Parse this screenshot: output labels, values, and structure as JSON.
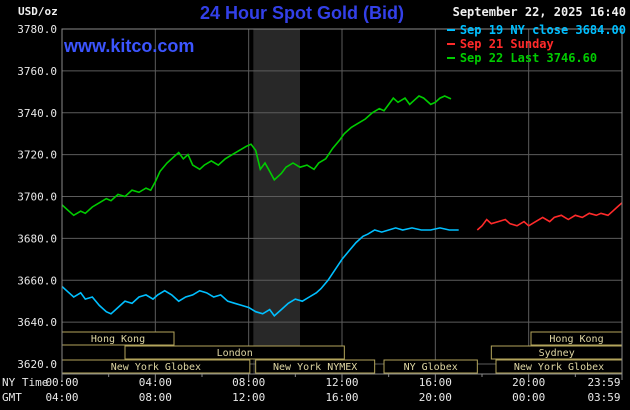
{
  "header": {
    "unit": "USD/oz",
    "title": "24 Hour Spot Gold (Bid)",
    "datetime": "September 22, 2025 16:40",
    "watermark": "www.kitco.com"
  },
  "legend": {
    "items": [
      {
        "label": "Sep 19 NY close 3684.00",
        "color": "#00bfff"
      },
      {
        "label": "Sep 21 Sunday",
        "color": "#ff2a2a"
      },
      {
        "label": "Sep 22 Last 3746.60",
        "color": "#00cc00"
      }
    ]
  },
  "axes": {
    "ny_label": "NY Time",
    "gmt_label": "GMT"
  },
  "chart_data": {
    "type": "line",
    "title": "24 Hour Spot Gold (Bid)",
    "xlabel": "NY Time / GMT",
    "ylabel": "USD/oz",
    "ylim": [
      3620,
      3780
    ],
    "ytick_step": 20,
    "xlim_hours": [
      0,
      24
    ],
    "grid": true,
    "legend_position": "top-right",
    "colors": {
      "band": "#282828",
      "grid": "#5c5c5c",
      "border": "#8a8a8a",
      "text": "#e8e8e8",
      "session_border": "#b3a55c",
      "session_text": "#ded6a3"
    },
    "xticks": [
      {
        "hour": 0,
        "ny": "00:00",
        "gmt": "04:00"
      },
      {
        "hour": 4,
        "ny": "04:00",
        "gmt": "08:00"
      },
      {
        "hour": 8,
        "ny": "08:00",
        "gmt": "12:00"
      },
      {
        "hour": 12,
        "ny": "12:00",
        "gmt": "16:00"
      },
      {
        "hour": 16,
        "ny": "16:00",
        "gmt": "20:00"
      },
      {
        "hour": 20,
        "ny": "20:00",
        "gmt": "00:00"
      },
      {
        "hour": 24,
        "ny": "23:59",
        "gmt": "03:59"
      }
    ],
    "highlight_band_hours": [
      8.2,
      10.2
    ],
    "sessions": [
      {
        "row": 0,
        "label": "Hong Kong",
        "start": 0,
        "end": 4.8
      },
      {
        "row": 0,
        "label": "Hong Kong",
        "start": 20.1,
        "end": 24
      },
      {
        "row": 1,
        "label": "London",
        "start": 2.7,
        "end": 12.1
      },
      {
        "row": 1,
        "label": "Sydney",
        "start": 18.4,
        "end": 24
      },
      {
        "row": 2,
        "label": "New York Globex",
        "start": 0,
        "end": 8.05
      },
      {
        "row": 2,
        "label": "New York NYMEX",
        "start": 8.3,
        "end": 13.4
      },
      {
        "row": 2,
        "label": "NY Globex",
        "start": 13.8,
        "end": 17.8
      },
      {
        "row": 2,
        "label": "New York Globex",
        "start": 18.6,
        "end": 24
      }
    ],
    "series": [
      {
        "id": "sep19",
        "name": "Sep 19 NY close 3684.00",
        "color": "#00bfff",
        "points": [
          [
            0,
            3657
          ],
          [
            0.3,
            3654
          ],
          [
            0.5,
            3652
          ],
          [
            0.8,
            3654
          ],
          [
            1,
            3651
          ],
          [
            1.3,
            3652
          ],
          [
            1.6,
            3648
          ],
          [
            1.9,
            3645
          ],
          [
            2.1,
            3644
          ],
          [
            2.4,
            3647
          ],
          [
            2.7,
            3650
          ],
          [
            3,
            3649
          ],
          [
            3.3,
            3652
          ],
          [
            3.6,
            3653
          ],
          [
            3.9,
            3651
          ],
          [
            4.1,
            3653
          ],
          [
            4.4,
            3655
          ],
          [
            4.7,
            3653
          ],
          [
            5,
            3650
          ],
          [
            5.3,
            3652
          ],
          [
            5.6,
            3653
          ],
          [
            5.9,
            3655
          ],
          [
            6.2,
            3654
          ],
          [
            6.5,
            3652
          ],
          [
            6.8,
            3653
          ],
          [
            7.1,
            3650
          ],
          [
            7.4,
            3649
          ],
          [
            7.7,
            3648
          ],
          [
            8,
            3647
          ],
          [
            8.3,
            3645
          ],
          [
            8.6,
            3644
          ],
          [
            8.9,
            3646
          ],
          [
            9.1,
            3643
          ],
          [
            9.4,
            3646
          ],
          [
            9.7,
            3649
          ],
          [
            10,
            3651
          ],
          [
            10.3,
            3650
          ],
          [
            10.6,
            3652
          ],
          [
            10.9,
            3654
          ],
          [
            11.1,
            3656
          ],
          [
            11.4,
            3660
          ],
          [
            11.7,
            3665
          ],
          [
            12,
            3670
          ],
          [
            12.3,
            3674
          ],
          [
            12.6,
            3678
          ],
          [
            12.9,
            3681
          ],
          [
            13.1,
            3682
          ],
          [
            13.4,
            3684
          ],
          [
            13.7,
            3683
          ],
          [
            14,
            3684
          ],
          [
            14.3,
            3685
          ],
          [
            14.6,
            3684
          ],
          [
            15,
            3685
          ],
          [
            15.4,
            3684
          ],
          [
            15.8,
            3684
          ],
          [
            16.2,
            3685
          ],
          [
            16.6,
            3684
          ],
          [
            17,
            3684
          ]
        ]
      },
      {
        "id": "sep21",
        "name": "Sep 21 Sunday",
        "color": "#ff2a2a",
        "points": [
          [
            17.8,
            3684
          ],
          [
            18,
            3686
          ],
          [
            18.2,
            3689
          ],
          [
            18.4,
            3687
          ],
          [
            18.7,
            3688
          ],
          [
            19,
            3689
          ],
          [
            19.2,
            3687
          ],
          [
            19.5,
            3686
          ],
          [
            19.8,
            3688
          ],
          [
            20,
            3686
          ],
          [
            20.3,
            3688
          ],
          [
            20.6,
            3690
          ],
          [
            20.9,
            3688
          ],
          [
            21.1,
            3690
          ],
          [
            21.4,
            3691
          ],
          [
            21.7,
            3689
          ],
          [
            22,
            3691
          ],
          [
            22.3,
            3690
          ],
          [
            22.6,
            3692
          ],
          [
            22.9,
            3691
          ],
          [
            23.1,
            3692
          ],
          [
            23.4,
            3691
          ],
          [
            23.6,
            3693
          ],
          [
            23.8,
            3695
          ],
          [
            24,
            3697
          ]
        ]
      },
      {
        "id": "sep22",
        "name": "Sep 22 Last 3746.60",
        "color": "#00cc00",
        "points": [
          [
            0,
            3696
          ],
          [
            0.3,
            3693
          ],
          [
            0.5,
            3691
          ],
          [
            0.8,
            3693
          ],
          [
            1,
            3692
          ],
          [
            1.3,
            3695
          ],
          [
            1.6,
            3697
          ],
          [
            1.9,
            3699
          ],
          [
            2.1,
            3698
          ],
          [
            2.4,
            3701
          ],
          [
            2.7,
            3700
          ],
          [
            3,
            3703
          ],
          [
            3.3,
            3702
          ],
          [
            3.6,
            3704
          ],
          [
            3.8,
            3703
          ],
          [
            4,
            3707
          ],
          [
            4.2,
            3712
          ],
          [
            4.5,
            3716
          ],
          [
            4.8,
            3719
          ],
          [
            5,
            3721
          ],
          [
            5.2,
            3718
          ],
          [
            5.4,
            3720
          ],
          [
            5.6,
            3715
          ],
          [
            5.9,
            3713
          ],
          [
            6.1,
            3715
          ],
          [
            6.4,
            3717
          ],
          [
            6.7,
            3715
          ],
          [
            7,
            3718
          ],
          [
            7.3,
            3720
          ],
          [
            7.6,
            3722
          ],
          [
            7.9,
            3724
          ],
          [
            8.1,
            3725
          ],
          [
            8.3,
            3722
          ],
          [
            8.5,
            3713
          ],
          [
            8.7,
            3716
          ],
          [
            8.9,
            3712
          ],
          [
            9.1,
            3708
          ],
          [
            9.4,
            3711
          ],
          [
            9.6,
            3714
          ],
          [
            9.9,
            3716
          ],
          [
            10.2,
            3714
          ],
          [
            10.5,
            3715
          ],
          [
            10.8,
            3713
          ],
          [
            11,
            3716
          ],
          [
            11.3,
            3718
          ],
          [
            11.6,
            3723
          ],
          [
            11.9,
            3727
          ],
          [
            12.1,
            3730
          ],
          [
            12.4,
            3733
          ],
          [
            12.7,
            3735
          ],
          [
            13,
            3737
          ],
          [
            13.3,
            3740
          ],
          [
            13.6,
            3742
          ],
          [
            13.8,
            3741
          ],
          [
            14,
            3744
          ],
          [
            14.2,
            3747
          ],
          [
            14.4,
            3745
          ],
          [
            14.7,
            3747
          ],
          [
            14.9,
            3744
          ],
          [
            15.1,
            3746
          ],
          [
            15.3,
            3748
          ],
          [
            15.5,
            3747
          ],
          [
            15.8,
            3744
          ],
          [
            16,
            3745
          ],
          [
            16.2,
            3747
          ],
          [
            16.4,
            3748
          ],
          [
            16.67,
            3746.6
          ]
        ]
      }
    ]
  }
}
